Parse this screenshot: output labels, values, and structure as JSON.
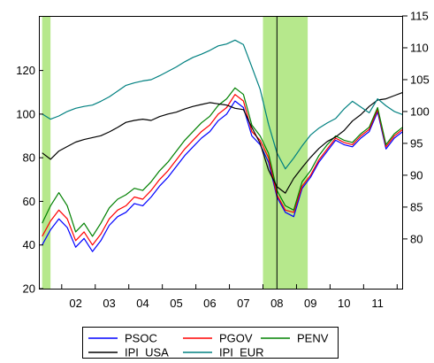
{
  "chart_data": {
    "type": "line",
    "title": "",
    "x": [
      "2001-06",
      "2001-09",
      "2001-12",
      "2002-03",
      "2002-06",
      "2002-09",
      "2002-12",
      "2003-03",
      "2003-06",
      "2003-09",
      "2003-12",
      "2004-03",
      "2004-06",
      "2004-09",
      "2004-12",
      "2005-03",
      "2005-06",
      "2005-09",
      "2005-12",
      "2006-03",
      "2006-06",
      "2006-09",
      "2006-12",
      "2007-03",
      "2007-06",
      "2007-09",
      "2007-12",
      "2008-03",
      "2008-06",
      "2008-09",
      "2008-12",
      "2009-03",
      "2009-06",
      "2009-09",
      "2009-12",
      "2010-03",
      "2010-06",
      "2010-09",
      "2010-12",
      "2011-03",
      "2011-06",
      "2011-09",
      "2011-12",
      "2012-03"
    ],
    "x_tick_labels": [
      "02",
      "03",
      "04",
      "05",
      "06",
      "07",
      "08",
      "09",
      "10",
      "11"
    ],
    "x_ticks": [
      "2002-06",
      "2003-06",
      "2004-06",
      "2005-06",
      "2006-06",
      "2007-06",
      "2008-06",
      "2009-06",
      "2010-06",
      "2011-06"
    ],
    "left_axis": {
      "ylim": [
        20,
        145
      ],
      "ticks": [
        20,
        40,
        60,
        80,
        100,
        120
      ]
    },
    "right_axis": {
      "ylim": [
        72.2,
        115
      ],
      "ticks": [
        80,
        85,
        90,
        95,
        100,
        105,
        110,
        115
      ]
    },
    "series": [
      {
        "name": "PSOC",
        "axis": "left",
        "color": "#0000ff",
        "values": [
          40,
          47,
          52,
          48,
          39,
          43,
          37,
          42,
          49,
          53,
          55,
          59,
          58,
          62,
          67,
          71,
          76,
          81,
          85,
          89,
          92,
          97,
          100,
          106,
          103,
          90,
          86,
          78,
          62,
          55,
          53,
          66,
          71,
          78,
          83,
          88,
          86,
          85,
          89,
          92,
          101,
          84,
          89,
          92
        ]
      },
      {
        "name": "PGOV",
        "axis": "left",
        "color": "#ff0000",
        "values": [
          44,
          51,
          56,
          52,
          42,
          46,
          40,
          45,
          52,
          56,
          58,
          62,
          61,
          65,
          70,
          74,
          79,
          84,
          88,
          92,
          95,
          100,
          103,
          109,
          106,
          92,
          88,
          80,
          63,
          56,
          55,
          67,
          72,
          79,
          84,
          89,
          87,
          86,
          90,
          93,
          102,
          85,
          90,
          93
        ]
      },
      {
        "name": "PENV",
        "axis": "left",
        "color": "#008000",
        "values": [
          50,
          58,
          64,
          58,
          46,
          50,
          44,
          50,
          57,
          61,
          63,
          66,
          65,
          69,
          74,
          78,
          83,
          88,
          92,
          96,
          99,
          104,
          107,
          112,
          109,
          95,
          90,
          82,
          65,
          58,
          56,
          69,
          74,
          81,
          86,
          90,
          88,
          87,
          91,
          94,
          103,
          86,
          91,
          94
        ]
      },
      {
        "name": "IPI_USA",
        "axis": "right",
        "color": "#000000",
        "values": [
          93.5,
          92.5,
          93.8,
          94.5,
          95.2,
          95.6,
          95.9,
          96.2,
          96.8,
          97.5,
          98.3,
          98.6,
          98.8,
          98.6,
          99.2,
          99.6,
          99.9,
          100.4,
          100.8,
          101.1,
          101.4,
          101.2,
          101.0,
          100.5,
          100.3,
          97.5,
          95.0,
          90.8,
          88.2,
          87.2,
          89.5,
          91.2,
          92.8,
          94.2,
          95.3,
          96.0,
          97.0,
          98.5,
          99.5,
          100.8,
          101.8,
          102.0,
          102.5,
          103.0
        ]
      },
      {
        "name": "IPI_EUR",
        "axis": "right",
        "color": "#008080",
        "values": [
          99.6,
          98.8,
          99.3,
          100.0,
          100.5,
          100.8,
          101.0,
          101.6,
          102.3,
          103.2,
          104.1,
          104.5,
          104.8,
          105.0,
          105.6,
          106.3,
          107.0,
          107.8,
          108.5,
          109.0,
          109.6,
          110.3,
          110.6,
          111.2,
          110.5,
          107.0,
          103.5,
          98.0,
          93.5,
          91.0,
          92.7,
          94.6,
          96.3,
          97.4,
          98.2,
          98.9,
          100.4,
          101.6,
          100.7,
          99.8,
          102.0,
          100.9,
          100.0,
          99.5
        ]
      }
    ],
    "shaded_regions": [
      [
        "2001-06",
        "2001-09"
      ],
      [
        "2008-01",
        "2009-05"
      ]
    ],
    "vertical_lines": [
      "2008-06"
    ],
    "shade_color": "#b6e88c",
    "legend_position": "bottom",
    "legend": [
      "PSOC",
      "PGOV",
      "PENV",
      "IPI_USA",
      "IPI_EUR"
    ]
  }
}
